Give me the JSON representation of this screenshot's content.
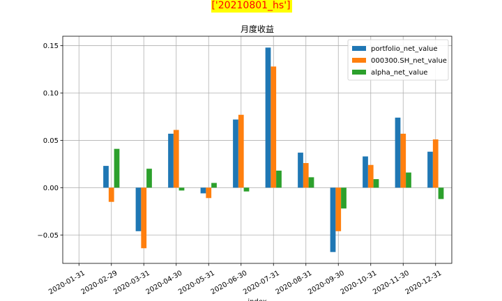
{
  "chart_data": {
    "type": "bar",
    "suptitle": "['20210801_hs']",
    "title": "月度收益",
    "xlabel": "index",
    "ylabel": "",
    "categories": [
      "2020-01-31",
      "2020-02-29",
      "2020-03-31",
      "2020-04-30",
      "2020-05-31",
      "2020-06-30",
      "2020-07-31",
      "2020-08-31",
      "2020-09-30",
      "2020-10-31",
      "2020-11-30",
      "2020-12-31"
    ],
    "series": [
      {
        "name": "portfolio_net_value",
        "color": "#1f77b4",
        "values": [
          0,
          0.023,
          -0.046,
          0.057,
          -0.006,
          0.072,
          0.148,
          0.037,
          -0.068,
          0.033,
          0.074,
          0.038
        ]
      },
      {
        "name": "000300.SH_net_value",
        "color": "#ff7f0e",
        "values": [
          0,
          -0.015,
          -0.064,
          0.061,
          -0.011,
          0.077,
          0.128,
          0.026,
          -0.046,
          0.024,
          0.057,
          0.051
        ]
      },
      {
        "name": "alpha_net_value",
        "color": "#2ca02c",
        "values": [
          0,
          0.041,
          0.02,
          -0.003,
          0.005,
          -0.004,
          0.018,
          0.011,
          -0.022,
          0.009,
          0.016,
          -0.012
        ]
      }
    ],
    "ylim": [
      -0.08,
      0.16
    ],
    "yticks": [
      -0.05,
      0.0,
      0.05,
      0.1,
      0.15
    ],
    "ytick_labels": [
      "−0.05",
      "0.00",
      "0.05",
      "0.10",
      "0.15"
    ],
    "grid": true,
    "legend_position": "top-right"
  }
}
